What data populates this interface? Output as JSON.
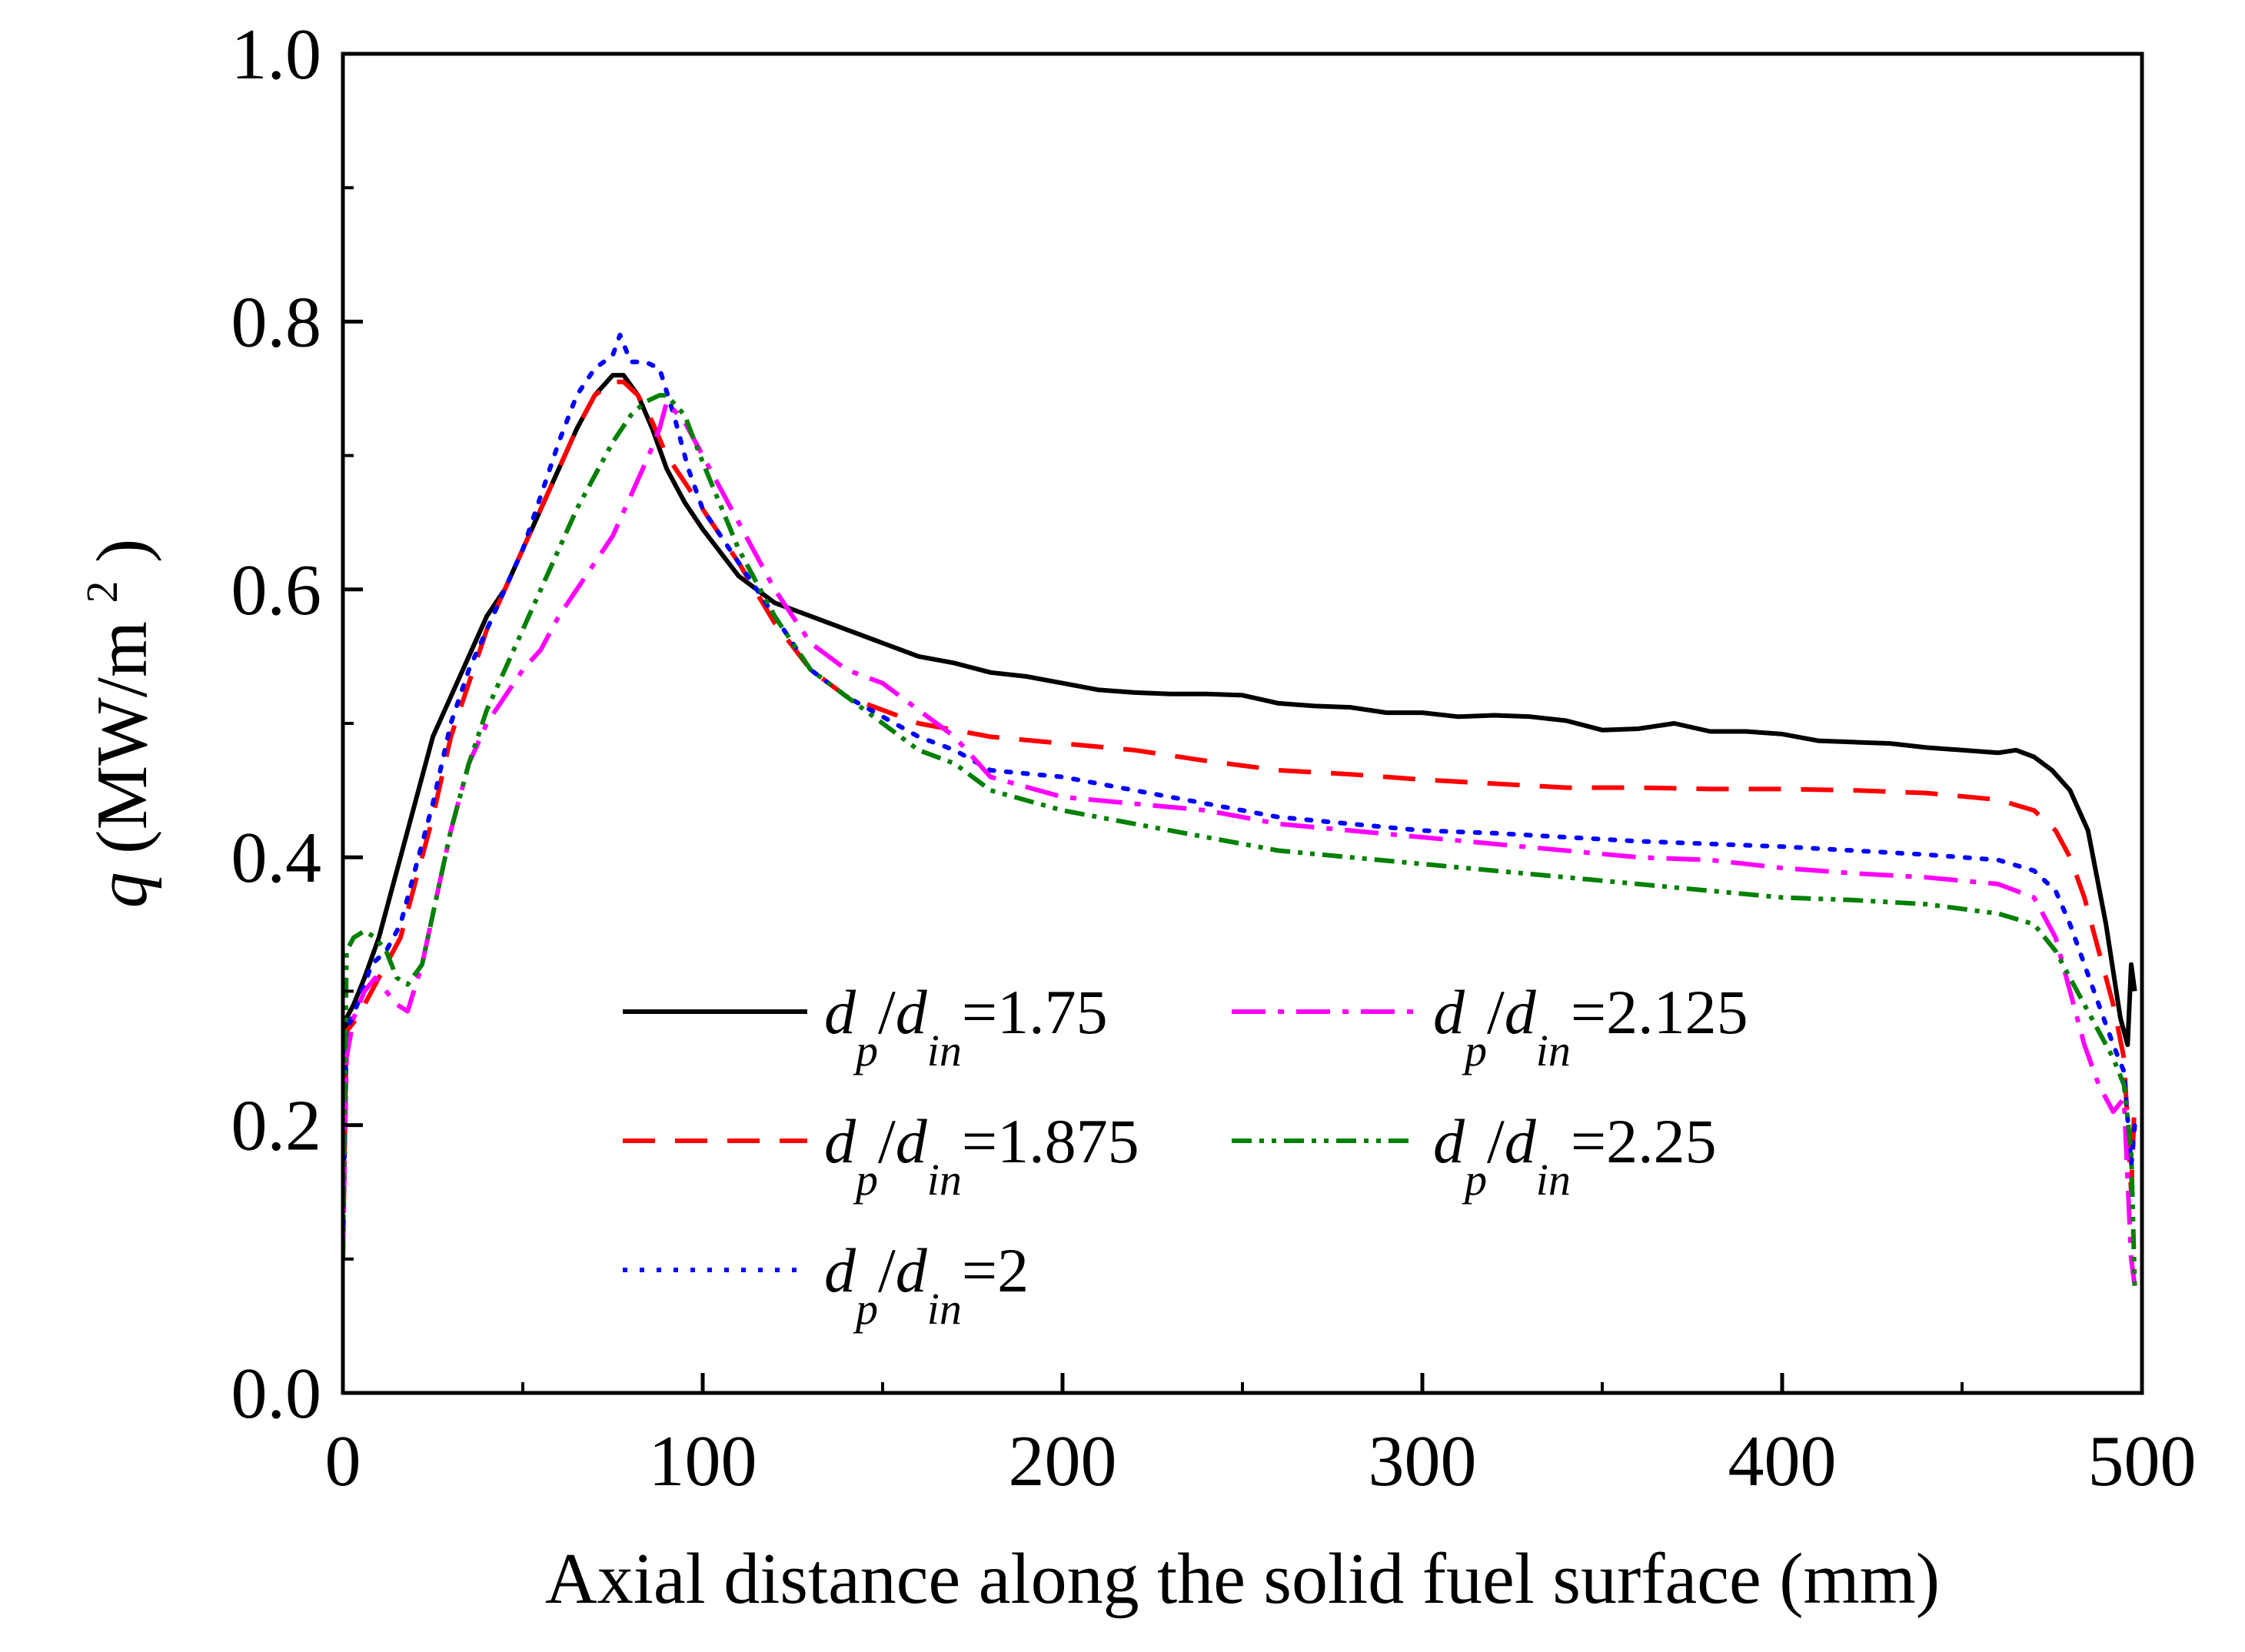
{
  "chart_data": {
    "type": "line",
    "title": "",
    "xlabel": "Axial distance along the solid fuel surface (mm)",
    "ylabel": {
      "var": "q",
      "units_pre": " (MW/m",
      "units_sup": "2",
      "units_post": ")"
    },
    "xlim": [
      0,
      500
    ],
    "ylim": [
      0.0,
      1.0
    ],
    "xticks": [
      0,
      100,
      200,
      300,
      400,
      500
    ],
    "xtick_labels": [
      "0",
      "100",
      "200",
      "300",
      "400",
      "500"
    ],
    "yticks": [
      0.0,
      0.2,
      0.4,
      0.6,
      0.8,
      1.0
    ],
    "ytick_labels": [
      "0.0",
      "0.2",
      "0.4",
      "0.6",
      "0.8",
      "1.0"
    ],
    "grid": false,
    "legend_position": "center-bottom",
    "series": [
      {
        "name": "dp/din=1.75",
        "legend": {
          "d1": "d",
          "s1": "p",
          "slash": "/",
          "d2": "d",
          "s2": "in",
          "value": "=1.75"
        },
        "color": "#000000",
        "dash": "solid",
        "x": [
          0,
          1,
          3,
          6,
          10,
          15,
          20,
          25,
          30,
          35,
          40,
          45,
          50,
          55,
          60,
          65,
          70,
          75,
          78,
          82,
          86,
          90,
          95,
          100,
          110,
          120,
          130,
          140,
          150,
          160,
          170,
          180,
          190,
          200,
          210,
          220,
          230,
          240,
          250,
          260,
          270,
          280,
          290,
          300,
          310,
          320,
          330,
          340,
          350,
          360,
          370,
          380,
          390,
          400,
          410,
          420,
          430,
          440,
          450,
          460,
          465,
          470,
          475,
          480,
          485,
          490,
          494,
          496,
          497,
          498
        ],
        "y": [
          0.14,
          0.28,
          0.29,
          0.31,
          0.34,
          0.39,
          0.44,
          0.49,
          0.52,
          0.55,
          0.58,
          0.6,
          0.63,
          0.66,
          0.69,
          0.72,
          0.745,
          0.76,
          0.76,
          0.745,
          0.72,
          0.69,
          0.665,
          0.645,
          0.61,
          0.59,
          0.58,
          0.57,
          0.56,
          0.55,
          0.545,
          0.538,
          0.535,
          0.53,
          0.525,
          0.523,
          0.522,
          0.522,
          0.521,
          0.515,
          0.513,
          0.512,
          0.508,
          0.508,
          0.505,
          0.506,
          0.505,
          0.502,
          0.495,
          0.496,
          0.5,
          0.494,
          0.494,
          0.492,
          0.487,
          0.486,
          0.485,
          0.482,
          0.48,
          0.478,
          0.48,
          0.475,
          0.465,
          0.45,
          0.42,
          0.35,
          0.28,
          0.26,
          0.32,
          0.3
        ]
      },
      {
        "name": "dp/din=1.875",
        "legend": {
          "d1": "d",
          "s1": "p",
          "slash": "/",
          "d2": "d",
          "s2": "in",
          "value": "=1.875"
        },
        "color": "#ff0000",
        "dash": "42 26",
        "x": [
          0,
          1,
          4,
          8,
          12,
          16,
          20,
          25,
          30,
          35,
          40,
          45,
          50,
          55,
          60,
          65,
          70,
          75,
          78,
          82,
          86,
          90,
          95,
          100,
          110,
          120,
          130,
          140,
          150,
          160,
          170,
          180,
          200,
          220,
          240,
          260,
          280,
          300,
          320,
          340,
          360,
          380,
          400,
          420,
          440,
          460,
          470,
          476,
          480,
          484,
          488,
          492,
          495,
          497,
          498
        ],
        "y": [
          0.1,
          0.27,
          0.28,
          0.3,
          0.32,
          0.34,
          0.38,
          0.43,
          0.49,
          0.53,
          0.57,
          0.6,
          0.63,
          0.66,
          0.69,
          0.72,
          0.745,
          0.755,
          0.755,
          0.745,
          0.725,
          0.7,
          0.68,
          0.66,
          0.62,
          0.575,
          0.54,
          0.52,
          0.51,
          0.5,
          0.495,
          0.49,
          0.485,
          0.48,
          0.472,
          0.465,
          0.462,
          0.458,
          0.455,
          0.452,
          0.452,
          0.451,
          0.451,
          0.45,
          0.448,
          0.443,
          0.435,
          0.42,
          0.4,
          0.37,
          0.33,
          0.29,
          0.25,
          0.15,
          0.22
        ]
      },
      {
        "name": "dp/din=2",
        "legend": {
          "d1": "d",
          "s1": "p",
          "slash": "/",
          "d2": "d",
          "s2": "in",
          "value": "=2"
        },
        "color": "#0000ff",
        "dash": "6 16",
        "x": [
          0,
          1,
          4,
          8,
          12,
          16,
          20,
          25,
          30,
          35,
          40,
          45,
          50,
          55,
          60,
          65,
          70,
          75,
          77,
          80,
          84,
          88,
          92,
          96,
          100,
          110,
          120,
          130,
          140,
          150,
          160,
          170,
          180,
          200,
          220,
          240,
          260,
          280,
          300,
          320,
          340,
          360,
          380,
          400,
          420,
          440,
          460,
          470,
          476,
          480,
          484,
          488,
          492,
          495,
          497,
          498
        ],
        "y": [
          0.1,
          0.27,
          0.29,
          0.32,
          0.33,
          0.35,
          0.39,
          0.44,
          0.5,
          0.54,
          0.57,
          0.6,
          0.63,
          0.67,
          0.71,
          0.745,
          0.765,
          0.775,
          0.79,
          0.77,
          0.77,
          0.765,
          0.73,
          0.69,
          0.66,
          0.62,
          0.58,
          0.54,
          0.52,
          0.505,
          0.49,
          0.48,
          0.465,
          0.46,
          0.45,
          0.44,
          0.43,
          0.425,
          0.42,
          0.418,
          0.415,
          0.412,
          0.41,
          0.408,
          0.405,
          0.402,
          0.398,
          0.39,
          0.375,
          0.35,
          0.32,
          0.29,
          0.26,
          0.24,
          0.17,
          0.2
        ]
      },
      {
        "name": "dp/din=2.125",
        "legend": {
          "d1": "d",
          "s1": "p",
          "slash": "/",
          "d2": "d",
          "s2": "in",
          "value": "=2.125"
        },
        "color": "#ff00ff",
        "dash": "44 16 8 16",
        "x": [
          0,
          1,
          3,
          6,
          9,
          12,
          15,
          18,
          22,
          26,
          30,
          35,
          40,
          45,
          50,
          55,
          60,
          65,
          70,
          75,
          80,
          85,
          88,
          90,
          95,
          100,
          110,
          120,
          130,
          140,
          150,
          160,
          170,
          180,
          200,
          220,
          240,
          260,
          280,
          300,
          320,
          340,
          360,
          380,
          400,
          420,
          440,
          460,
          470,
          476,
          480,
          484,
          488,
          492,
          495,
          497,
          498
        ],
        "y": [
          0.1,
          0.25,
          0.28,
          0.3,
          0.31,
          0.3,
          0.29,
          0.285,
          0.32,
          0.37,
          0.42,
          0.47,
          0.5,
          0.52,
          0.54,
          0.555,
          0.58,
          0.6,
          0.62,
          0.64,
          0.67,
          0.7,
          0.72,
          0.74,
          0.725,
          0.7,
          0.65,
          0.6,
          0.56,
          0.54,
          0.53,
          0.51,
          0.49,
          0.46,
          0.445,
          0.44,
          0.435,
          0.425,
          0.42,
          0.415,
          0.41,
          0.405,
          0.4,
          0.398,
          0.392,
          0.388,
          0.385,
          0.38,
          0.37,
          0.34,
          0.3,
          0.26,
          0.23,
          0.21,
          0.22,
          0.1,
          0.08
        ]
      },
      {
        "name": "dp/din=2.25",
        "legend": {
          "d1": "d",
          "s1": "p",
          "slash": "/",
          "d2": "d",
          "s2": "in",
          "value": "=2.25"
        },
        "color": "#008000",
        "dash": "26 10 6 10 6 10",
        "x": [
          0,
          1,
          3,
          6,
          9,
          12,
          15,
          18,
          22,
          26,
          30,
          35,
          40,
          45,
          50,
          55,
          60,
          65,
          70,
          75,
          80,
          84,
          88,
          90,
          95,
          100,
          110,
          120,
          130,
          140,
          150,
          160,
          170,
          180,
          200,
          220,
          240,
          260,
          280,
          300,
          320,
          340,
          360,
          380,
          400,
          420,
          440,
          460,
          470,
          476,
          480,
          484,
          488,
          492,
          495,
          497,
          498
        ],
        "y": [
          0.1,
          0.33,
          0.34,
          0.345,
          0.34,
          0.33,
          0.31,
          0.305,
          0.32,
          0.37,
          0.42,
          0.47,
          0.51,
          0.54,
          0.57,
          0.6,
          0.63,
          0.66,
          0.685,
          0.71,
          0.73,
          0.74,
          0.745,
          0.745,
          0.73,
          0.695,
          0.63,
          0.58,
          0.54,
          0.52,
          0.5,
          0.48,
          0.47,
          0.45,
          0.435,
          0.425,
          0.415,
          0.405,
          0.4,
          0.395,
          0.39,
          0.385,
          0.38,
          0.375,
          0.37,
          0.368,
          0.365,
          0.358,
          0.35,
          0.33,
          0.31,
          0.29,
          0.27,
          0.25,
          0.23,
          0.18,
          0.08
        ]
      }
    ]
  }
}
